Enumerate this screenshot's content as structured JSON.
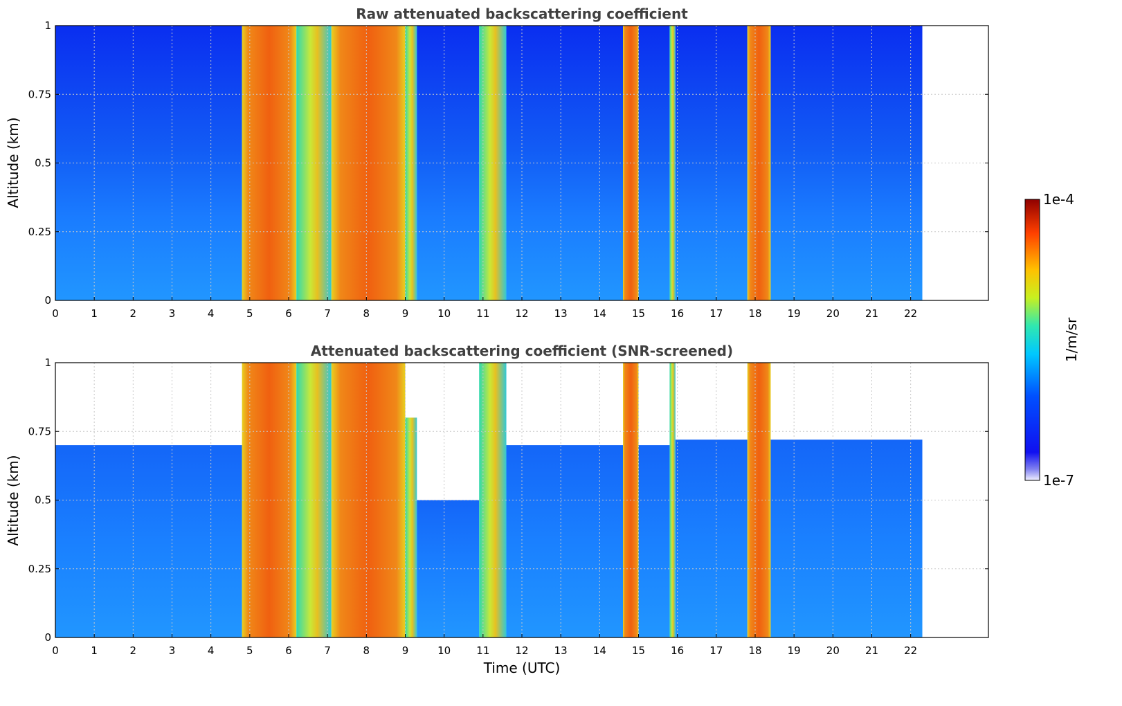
{
  "chart_data": [
    {
      "type": "heatmap",
      "title": "Raw attenuated backscattering coefficient",
      "ylabel": "Altitude (km)",
      "xlabel": "",
      "xlim": [
        0,
        24
      ],
      "ylim": [
        0,
        1
      ],
      "xticks": [
        "0",
        "1",
        "2",
        "3",
        "4",
        "5",
        "6",
        "7",
        "8",
        "9",
        "10",
        "11",
        "12",
        "13",
        "14",
        "15",
        "16",
        "17",
        "18",
        "19",
        "20",
        "21",
        "22"
      ],
      "yticks": [
        "0",
        "0.25",
        "0.5",
        "0.75",
        "1"
      ],
      "grid": true,
      "data_extent_x": [
        0,
        22.3
      ],
      "profiles": [
        {
          "x0": 0.0,
          "x1": 4.8,
          "class": "clear"
        },
        {
          "x0": 4.8,
          "x1": 6.2,
          "class": "fog"
        },
        {
          "x0": 6.2,
          "x1": 7.1,
          "class": "moderate"
        },
        {
          "x0": 7.1,
          "x1": 9.0,
          "class": "fog"
        },
        {
          "x0": 9.0,
          "x1": 9.3,
          "class": "moderate"
        },
        {
          "x0": 9.3,
          "x1": 10.9,
          "class": "clear"
        },
        {
          "x0": 10.9,
          "x1": 11.6,
          "class": "moderate"
        },
        {
          "x0": 11.6,
          "x1": 14.6,
          "class": "clear"
        },
        {
          "x0": 14.6,
          "x1": 15.0,
          "class": "fog"
        },
        {
          "x0": 15.0,
          "x1": 15.8,
          "class": "clear"
        },
        {
          "x0": 15.8,
          "x1": 15.95,
          "class": "moderate"
        },
        {
          "x0": 15.95,
          "x1": 17.8,
          "class": "clear"
        },
        {
          "x0": 17.8,
          "x1": 18.4,
          "class": "fog"
        },
        {
          "x0": 18.4,
          "x1": 22.3,
          "class": "clear"
        }
      ]
    },
    {
      "type": "heatmap",
      "title": "Attenuated backscattering coefficient (SNR-screened)",
      "ylabel": "Altitude (km)",
      "xlabel": "Time (UTC)",
      "xlim": [
        0,
        24
      ],
      "ylim": [
        0,
        1
      ],
      "xticks": [
        "0",
        "1",
        "2",
        "3",
        "4",
        "5",
        "6",
        "7",
        "8",
        "9",
        "10",
        "11",
        "12",
        "13",
        "14",
        "15",
        "16",
        "17",
        "18",
        "19",
        "20",
        "21",
        "22"
      ],
      "yticks": [
        "0",
        "0.25",
        "0.5",
        "0.75",
        "1"
      ],
      "grid": true,
      "data_extent_x": [
        0,
        22.3
      ],
      "profiles": [
        {
          "x0": 0.0,
          "x1": 4.8,
          "class": "clear",
          "top_km": 0.7
        },
        {
          "x0": 4.8,
          "x1": 6.2,
          "class": "fog",
          "top_km": 1.0
        },
        {
          "x0": 6.2,
          "x1": 7.1,
          "class": "moderate",
          "top_km": 1.0
        },
        {
          "x0": 7.1,
          "x1": 9.0,
          "class": "fog",
          "top_km": 1.0
        },
        {
          "x0": 9.0,
          "x1": 9.3,
          "class": "moderate",
          "top_km": 0.8
        },
        {
          "x0": 9.3,
          "x1": 10.9,
          "class": "clear",
          "top_km": 0.5
        },
        {
          "x0": 10.9,
          "x1": 11.6,
          "class": "moderate",
          "top_km": 1.0
        },
        {
          "x0": 11.6,
          "x1": 14.6,
          "class": "clear",
          "top_km": 0.7
        },
        {
          "x0": 14.6,
          "x1": 15.0,
          "class": "fog",
          "top_km": 1.0
        },
        {
          "x0": 15.0,
          "x1": 15.8,
          "class": "clear",
          "top_km": 0.7
        },
        {
          "x0": 15.8,
          "x1": 15.95,
          "class": "moderate",
          "top_km": 1.0
        },
        {
          "x0": 15.95,
          "x1": 17.8,
          "class": "clear",
          "top_km": 0.72
        },
        {
          "x0": 17.8,
          "x1": 18.4,
          "class": "fog",
          "top_km": 1.0
        },
        {
          "x0": 18.4,
          "x1": 22.3,
          "class": "clear",
          "top_km": 0.72
        }
      ]
    }
  ],
  "colorbar": {
    "label": "1/m/sr",
    "max_label": "1e-4",
    "min_label": "1e-7",
    "range": [
      1e-07,
      0.0001
    ],
    "scale": "log",
    "colormap": "jet"
  },
  "colors": {
    "fog": "#f06a10",
    "fog_edge": "#e8d020",
    "moderate": "#30d8b0",
    "moderate_edge": "#c8e838",
    "clear_low": "#1e90ff",
    "clear_mid": "#1060f0",
    "clear_high": "#0a2ef0",
    "title": "#404040"
  }
}
